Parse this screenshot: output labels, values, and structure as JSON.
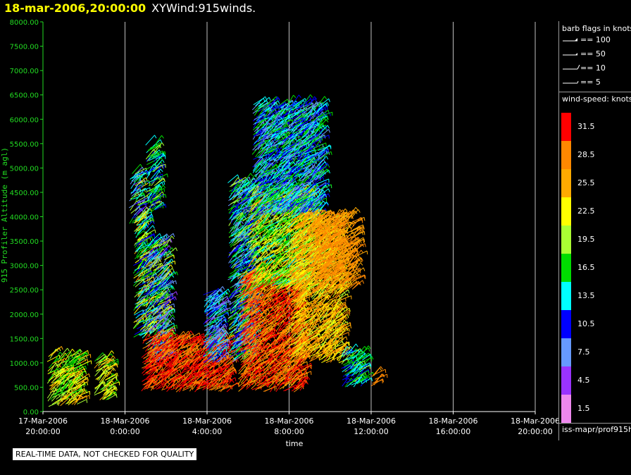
{
  "header": {
    "date": "18-mar-2006,20:00:00",
    "name": "XYWind:915winds."
  },
  "legend": {
    "barb_title": "barb flags in knots",
    "barbs": [
      {
        "label": "== 100",
        "kind": "pennant"
      },
      {
        "label": "== 50",
        "kind": "flag"
      },
      {
        "label": "== 10",
        "kind": "full"
      },
      {
        "label": "== 5",
        "kind": "half"
      }
    ],
    "speed_title": "wind-speed: knots",
    "footer": "iss-mapr/prof915h"
  },
  "note": "REAL-TIME DATA, NOT CHECKED FOR QUALITY",
  "colors": {
    "axis_green": "#22dd22",
    "gridline": "#ffffff"
  },
  "chart_data": {
    "type": "scatter",
    "xlabel": "time",
    "ylabel": "915 Profiler Altitude (m agl)",
    "ylim": [
      0,
      8000
    ],
    "y_ticks": [
      "0.00",
      "500.00",
      "1000.00",
      "1500.00",
      "2000.00",
      "2500.00",
      "3000.00",
      "3500.00",
      "4000.00",
      "4500.00",
      "5000.00",
      "5500.00",
      "6000.00",
      "6500.00",
      "7000.00",
      "7500.00",
      "8000.00"
    ],
    "x_ticks": [
      {
        "date": "17-Mar-2006",
        "time": "20:00:00",
        "hours": 0
      },
      {
        "date": "18-Mar-2006",
        "time": "0:00:00",
        "hours": 4
      },
      {
        "date": "18-Mar-2006",
        "time": "4:00:00",
        "hours": 8
      },
      {
        "date": "18-Mar-2006",
        "time": "8:00:00",
        "hours": 12
      },
      {
        "date": "18-Mar-2006",
        "time": "12:00:00",
        "hours": 16
      },
      {
        "date": "18-Mar-2006",
        "time": "16:00:00",
        "hours": 20
      },
      {
        "date": "18-Mar-2006",
        "time": "20:00:00",
        "hours": 24
      }
    ],
    "grid": "vertical",
    "color_scale": [
      {
        "value": "31.5",
        "color": "#ff0000"
      },
      {
        "value": "28.5",
        "color": "#ff8800"
      },
      {
        "value": "25.5",
        "color": "#ffaa00"
      },
      {
        "value": "22.5",
        "color": "#ffff00"
      },
      {
        "value": "19.5",
        "color": "#aaff33"
      },
      {
        "value": "16.5",
        "color": "#00dd00"
      },
      {
        "value": "13.5",
        "color": "#00ffff"
      },
      {
        "value": "10.5",
        "color": "#0000ff"
      },
      {
        "value": "7.5",
        "color": "#6699ff"
      },
      {
        "value": "4.5",
        "color": "#9933ff"
      },
      {
        "value": "1.5",
        "color": "#ee88ee"
      }
    ],
    "clusters": [
      {
        "t": [
          0.2,
          1.8
        ],
        "alt": [
          100,
          1150
        ],
        "speed": [
          16,
          26
        ]
      },
      {
        "t": [
          2.5,
          3.2
        ],
        "alt": [
          200,
          1100
        ],
        "speed": [
          17,
          25
        ]
      },
      {
        "t": [
          4.2,
          4.7
        ],
        "alt": [
          3800,
          4900
        ],
        "speed": [
          5,
          22
        ]
      },
      {
        "t": [
          4.4,
          5.0
        ],
        "alt": [
          1500,
          4000
        ],
        "speed": [
          8,
          26
        ]
      },
      {
        "t": [
          5.0,
          5.5
        ],
        "alt": [
          4000,
          5500
        ],
        "speed": [
          10,
          20
        ]
      },
      {
        "t": [
          5.0,
          6.0
        ],
        "alt": [
          1000,
          3500
        ],
        "speed": [
          5,
          24
        ]
      },
      {
        "t": [
          4.8,
          9.0
        ],
        "alt": [
          400,
          1500
        ],
        "speed": [
          27,
          34
        ]
      },
      {
        "t": [
          7.8,
          8.6
        ],
        "alt": [
          1000,
          2400
        ],
        "speed": [
          5,
          16
        ]
      },
      {
        "t": [
          9.0,
          10.2
        ],
        "alt": [
          1000,
          4700
        ],
        "speed": [
          6,
          20
        ]
      },
      {
        "t": [
          9.5,
          12.6
        ],
        "alt": [
          400,
          2800
        ],
        "speed": [
          24,
          34
        ]
      },
      {
        "t": [
          10.0,
          13.0
        ],
        "alt": [
          2500,
          4500
        ],
        "speed": [
          14,
          26
        ]
      },
      {
        "t": [
          10.2,
          13.5
        ],
        "alt": [
          4000,
          6300
        ],
        "speed": [
          6,
          18
        ]
      },
      {
        "t": [
          12.0,
          14.5
        ],
        "alt": [
          1000,
          4000
        ],
        "speed": [
          20,
          30
        ]
      },
      {
        "t": [
          13.0,
          15.2
        ],
        "alt": [
          2500,
          4000
        ],
        "speed": [
          25,
          30
        ]
      },
      {
        "t": [
          14.5,
          15.6
        ],
        "alt": [
          500,
          1200
        ],
        "speed": [
          10,
          19
        ]
      },
      {
        "t": [
          16.0,
          16.2
        ],
        "alt": [
          500,
          800
        ],
        "speed": [
          26,
          30
        ]
      }
    ]
  }
}
